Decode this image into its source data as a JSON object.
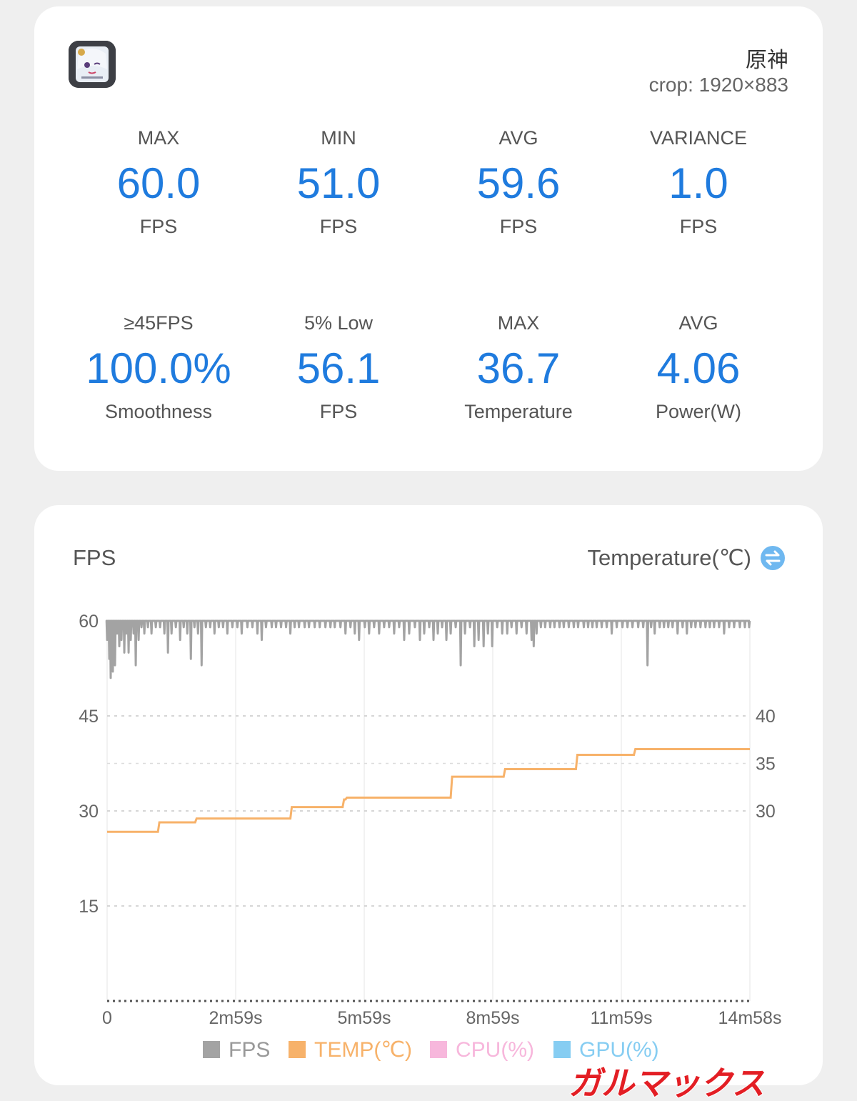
{
  "app": {
    "icon": "game-character-icon",
    "title": "原神",
    "crop": "crop: 1920×883"
  },
  "stats": [
    {
      "label": "MAX",
      "value": "60.0",
      "unit": "FPS"
    },
    {
      "label": "MIN",
      "value": "51.0",
      "unit": "FPS"
    },
    {
      "label": "AVG",
      "value": "59.6",
      "unit": "FPS"
    },
    {
      "label": "VARIANCE",
      "value": "1.0",
      "unit": "FPS"
    },
    {
      "label": "≥45FPS",
      "value": "100.0%",
      "unit": "Smoothness"
    },
    {
      "label": "5% Low",
      "value": "56.1",
      "unit": "FPS"
    },
    {
      "label": "MAX",
      "value": "36.7",
      "unit": "Temperature"
    },
    {
      "label": "AVG",
      "value": "4.06",
      "unit": "Power(W)"
    }
  ],
  "chart": {
    "left_title": "FPS",
    "right_title": "Temperature(℃)",
    "swap_icon": "swap-axis-icon"
  },
  "chart_data": {
    "type": "line",
    "x_tick_labels": [
      "0",
      "2m59s",
      "5m59s",
      "8m59s",
      "11m59s",
      "14m58s"
    ],
    "x_range_seconds": [
      0,
      898
    ],
    "y_left": {
      "label": "FPS",
      "ticks": [
        60,
        45,
        30,
        15
      ],
      "range": [
        0,
        60
      ]
    },
    "y_right": {
      "label": "Temperature(℃)",
      "ticks": [
        40,
        35,
        30
      ],
      "range": [
        20,
        40
      ]
    },
    "grid": true,
    "legend_position": "bottom",
    "series": [
      {
        "name": "FPS",
        "color": "#a3a3a3",
        "axis": "left",
        "baseline": 60,
        "dips": [
          [
            0,
            57
          ],
          [
            3,
            54
          ],
          [
            5,
            51
          ],
          [
            8,
            52
          ],
          [
            11,
            53
          ],
          [
            14,
            58
          ],
          [
            17,
            56
          ],
          [
            20,
            57
          ],
          [
            24,
            55
          ],
          [
            27,
            58
          ],
          [
            30,
            55
          ],
          [
            33,
            57
          ],
          [
            37,
            58
          ],
          [
            40,
            53
          ],
          [
            44,
            57
          ],
          [
            48,
            59
          ],
          [
            52,
            58
          ],
          [
            57,
            59
          ],
          [
            62,
            58
          ],
          [
            68,
            59
          ],
          [
            74,
            59
          ],
          [
            80,
            58
          ],
          [
            85,
            55
          ],
          [
            90,
            58
          ],
          [
            96,
            59
          ],
          [
            102,
            57
          ],
          [
            107,
            59
          ],
          [
            112,
            58
          ],
          [
            117,
            54
          ],
          [
            122,
            59
          ],
          [
            127,
            58
          ],
          [
            132,
            53
          ],
          [
            138,
            59
          ],
          [
            144,
            59
          ],
          [
            150,
            58
          ],
          [
            156,
            59
          ],
          [
            162,
            59
          ],
          [
            168,
            58
          ],
          [
            175,
            59
          ],
          [
            182,
            59
          ],
          [
            188,
            58
          ],
          [
            196,
            59
          ],
          [
            203,
            59
          ],
          [
            210,
            58
          ],
          [
            216,
            57
          ],
          [
            222,
            59
          ],
          [
            230,
            59
          ],
          [
            236,
            59
          ],
          [
            243,
            59
          ],
          [
            250,
            59
          ],
          [
            256,
            58
          ],
          [
            262,
            59
          ],
          [
            268,
            59
          ],
          [
            276,
            59
          ],
          [
            282,
            59
          ],
          [
            290,
            59
          ],
          [
            297,
            59
          ],
          [
            305,
            59
          ],
          [
            312,
            59
          ],
          [
            318,
            59
          ],
          [
            326,
            59
          ],
          [
            333,
            58
          ],
          [
            340,
            59
          ],
          [
            346,
            58
          ],
          [
            352,
            57
          ],
          [
            360,
            59
          ],
          [
            366,
            58
          ],
          [
            373,
            59
          ],
          [
            380,
            58
          ],
          [
            387,
            59
          ],
          [
            394,
            59
          ],
          [
            401,
            58
          ],
          [
            408,
            59
          ],
          [
            415,
            57
          ],
          [
            422,
            58
          ],
          [
            430,
            59
          ],
          [
            437,
            57
          ],
          [
            443,
            58
          ],
          [
            450,
            59
          ],
          [
            456,
            57
          ],
          [
            462,
            58
          ],
          [
            468,
            59
          ],
          [
            474,
            57
          ],
          [
            480,
            58
          ],
          [
            487,
            59
          ],
          [
            494,
            53
          ],
          [
            500,
            58
          ],
          [
            507,
            59
          ],
          [
            513,
            56
          ],
          [
            519,
            57
          ],
          [
            526,
            56
          ],
          [
            532,
            58
          ],
          [
            538,
            56
          ],
          [
            545,
            59
          ],
          [
            552,
            58
          ],
          [
            559,
            58
          ],
          [
            565,
            59
          ],
          [
            572,
            58
          ],
          [
            579,
            59
          ],
          [
            586,
            58
          ],
          [
            593,
            57
          ],
          [
            596,
            56
          ],
          [
            600,
            58
          ],
          [
            606,
            59
          ],
          [
            612,
            59
          ],
          [
            619,
            59
          ],
          [
            625,
            59
          ],
          [
            632,
            59
          ],
          [
            638,
            59
          ],
          [
            645,
            59
          ],
          [
            652,
            59
          ],
          [
            658,
            59
          ],
          [
            666,
            59
          ],
          [
            672,
            59
          ],
          [
            678,
            59
          ],
          [
            684,
            59
          ],
          [
            691,
            59
          ],
          [
            698,
            59
          ],
          [
            705,
            58
          ],
          [
            712,
            59
          ],
          [
            720,
            59
          ],
          [
            727,
            59
          ],
          [
            734,
            59
          ],
          [
            742,
            59
          ],
          [
            749,
            59
          ],
          [
            755,
            53
          ],
          [
            760,
            59
          ],
          [
            765,
            58
          ],
          [
            772,
            59
          ],
          [
            778,
            59
          ],
          [
            784,
            59
          ],
          [
            790,
            59
          ],
          [
            797,
            58
          ],
          [
            804,
            59
          ],
          [
            810,
            58
          ],
          [
            816,
            59
          ],
          [
            822,
            59
          ],
          [
            829,
            59
          ],
          [
            836,
            59
          ],
          [
            842,
            59
          ],
          [
            848,
            59
          ],
          [
            855,
            59
          ],
          [
            862,
            58
          ],
          [
            869,
            59
          ],
          [
            876,
            59
          ],
          [
            884,
            59
          ],
          [
            891,
            59
          ],
          [
            897,
            59
          ]
        ]
      },
      {
        "name": "TEMP(℃)",
        "color": "#f7b26a",
        "axis": "right",
        "steps": [
          [
            0,
            27.8
          ],
          [
            73,
            28.8
          ],
          [
            125,
            29.2
          ],
          [
            258,
            30.4
          ],
          [
            331,
            31.2
          ],
          [
            335,
            31.4
          ],
          [
            482,
            33.6
          ],
          [
            556,
            34.4
          ],
          [
            657,
            35.9
          ],
          [
            738,
            36.5
          ],
          [
            898,
            36.5
          ]
        ]
      },
      {
        "name": "CPU(%)",
        "color": "#f7b7dc",
        "axis": "right",
        "values": []
      },
      {
        "name": "GPU(%)",
        "color": "#86cdf2",
        "axis": "right",
        "values": []
      }
    ]
  },
  "watermark": {
    "text": "ガルマックス",
    "color": "#e31e24"
  }
}
